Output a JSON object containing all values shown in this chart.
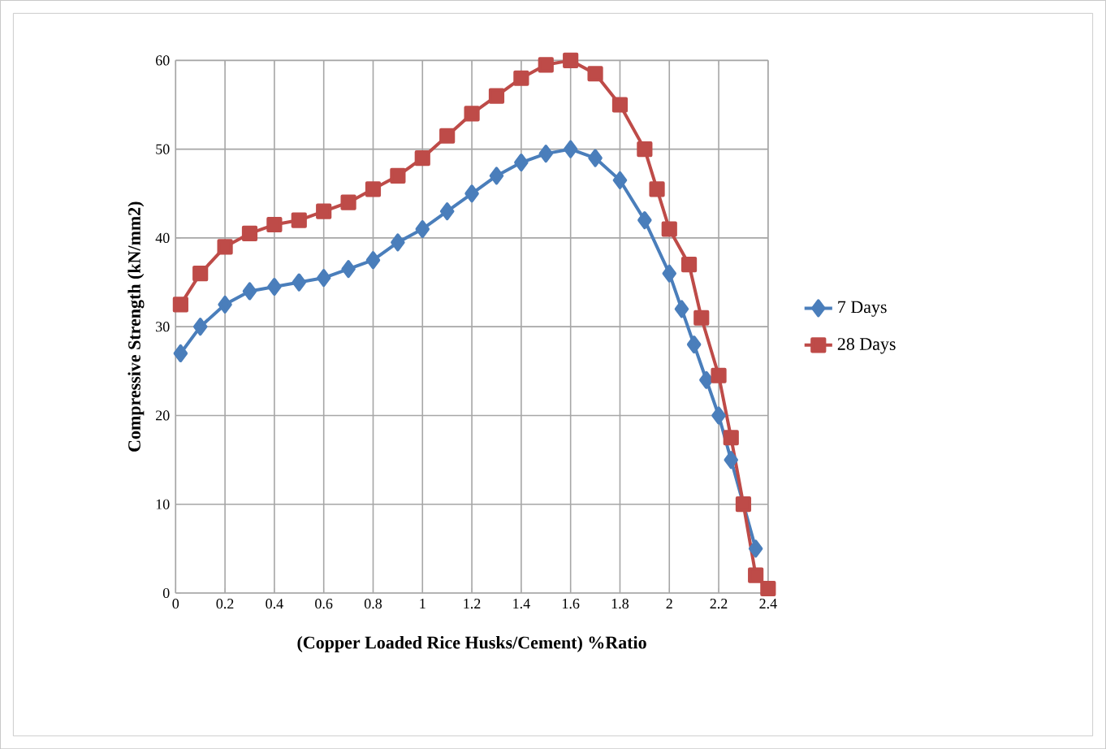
{
  "chart_data": {
    "type": "line",
    "xlabel": "(Copper  Loaded  Rice Husks/Cement) %Ratio",
    "ylabel": "Compressive Strength (kN/mm2)",
    "xlim": [
      0,
      2.4
    ],
    "ylim": [
      0,
      60
    ],
    "xticks": [
      0,
      0.2,
      0.4,
      0.6,
      0.8,
      1,
      1.2,
      1.4,
      1.6,
      1.8,
      2,
      2.2,
      2.4
    ],
    "yticks": [
      0,
      10,
      20,
      30,
      40,
      50,
      60
    ],
    "grid": true,
    "legend": "right",
    "series": [
      {
        "name": "7 Days",
        "color": "#4a7ebb",
        "marker": "diamond",
        "x": [
          0.02,
          0.1,
          0.2,
          0.3,
          0.4,
          0.5,
          0.6,
          0.7,
          0.8,
          0.9,
          1.0,
          1.1,
          1.2,
          1.3,
          1.4,
          1.5,
          1.6,
          1.7,
          1.8,
          1.9,
          2.0,
          2.05,
          2.1,
          2.15,
          2.2,
          2.25,
          2.3,
          2.35
        ],
        "values": [
          27,
          30,
          32.5,
          34,
          34.5,
          35,
          35.5,
          36.5,
          37.5,
          39.5,
          41,
          43,
          45,
          47,
          48.5,
          49.5,
          50,
          49,
          46.5,
          42,
          36,
          32,
          28,
          24,
          20,
          15,
          null,
          5
        ]
      },
      {
        "name": "28 Days",
        "color": "#be4b48",
        "marker": "square",
        "x": [
          0.02,
          0.1,
          0.2,
          0.3,
          0.4,
          0.5,
          0.6,
          0.7,
          0.8,
          0.9,
          1.0,
          1.1,
          1.2,
          1.3,
          1.4,
          1.5,
          1.6,
          1.7,
          1.8,
          1.9,
          1.95,
          2.0,
          2.08,
          2.13,
          2.2,
          2.25,
          2.3,
          2.35,
          2.4
        ],
        "values": [
          32.5,
          36,
          39,
          40.5,
          41.5,
          42,
          43,
          44,
          45.5,
          47,
          49,
          51.5,
          54,
          56,
          58,
          59.5,
          60,
          58.5,
          55,
          50,
          45.5,
          41,
          37,
          31,
          24.5,
          17.5,
          10,
          2,
          0.5
        ]
      }
    ]
  }
}
